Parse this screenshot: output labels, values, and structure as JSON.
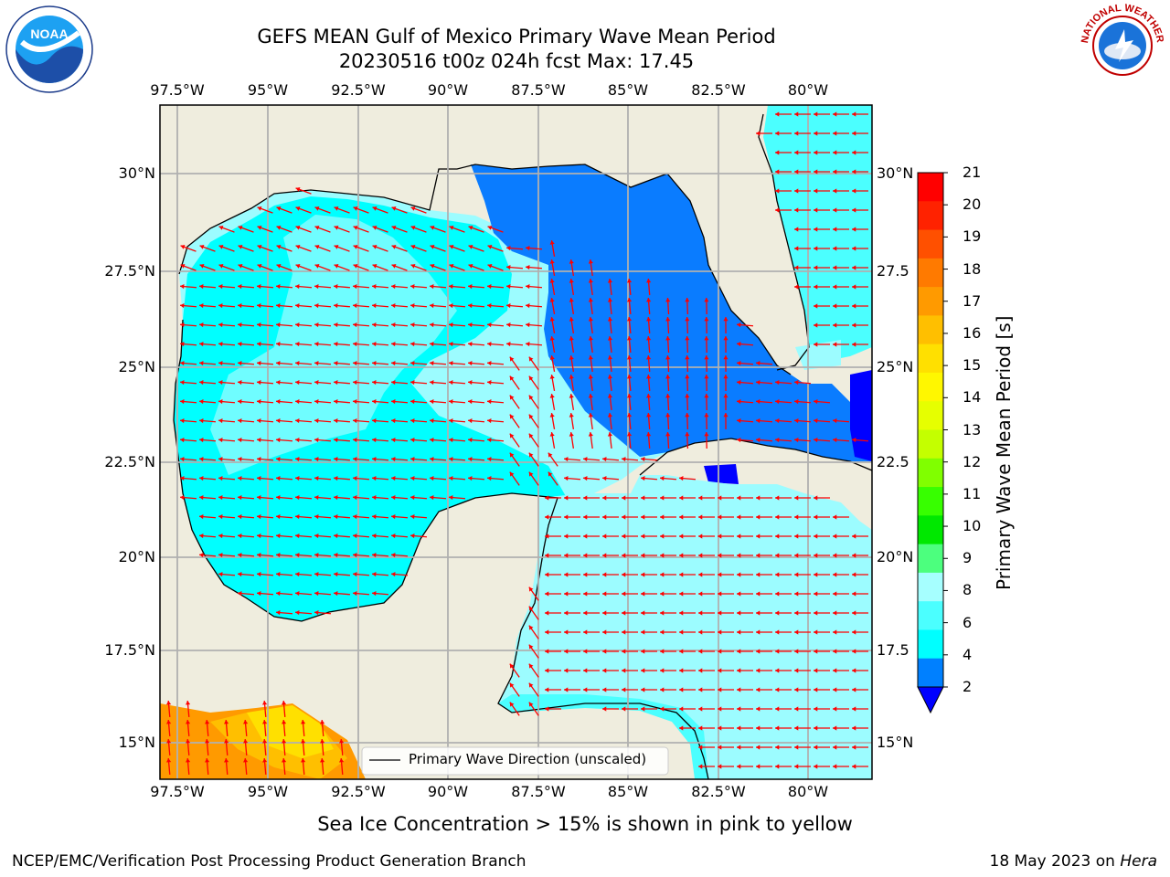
{
  "title_line1": "GEFS MEAN Gulf of Mexico Primary Wave Mean Period",
  "title_line2": "20230516 t00z 024h fcst   Max: 17.45",
  "lon_ticks_top": [
    "97.5°W",
    "95°W",
    "92.5°W",
    "90°W",
    "87.5°W",
    "85°W",
    "82.5°W",
    "80°W"
  ],
  "lon_ticks_bottom": [
    "97.5°W",
    "95°W",
    "92.5°W",
    "90°W",
    "87.5°W",
    "85°W",
    "82.5°W",
    "80°W"
  ],
  "lat_ticks_left": [
    "30°N",
    "27.5°N",
    "25°N",
    "22.5°N",
    "20°N",
    "17.5°N",
    "15°N"
  ],
  "lat_ticks_right": [
    "30°N",
    "27.5",
    "25°N",
    "22.5",
    "20°N",
    "17.5",
    "15°N"
  ],
  "colorbar": {
    "label": "Primary Wave Mean Period [s]",
    "ticks": [
      "21",
      "20",
      "19",
      "18",
      "17",
      "16",
      "15",
      "14",
      "13",
      "12",
      "11",
      "10",
      "9",
      "8",
      "6",
      "4",
      "2"
    ],
    "colors": [
      "#ff0000",
      "#ff2200",
      "#ff5000",
      "#ff7a00",
      "#ff9a00",
      "#ffbf00",
      "#ffe000",
      "#fff700",
      "#e6ff00",
      "#c4ff00",
      "#80ff00",
      "#37ff00",
      "#00e800",
      "#4cff7e",
      "#a6ffff",
      "#4bffff",
      "#00ffff",
      "#0080ff",
      "#0000ff"
    ]
  },
  "legend_label": "Primary Wave Direction (unscaled)",
  "note": "Sea Ice Concentration > 15% is shown in pink to yellow",
  "footer_left": "NCEP/EMC/Verification Post Processing Product Generation Branch",
  "footer_right_prefix": "18 May 2023 on ",
  "footer_right_host": "Hera",
  "logo_left_text": "NOAA",
  "logo_right_text": "NATIONAL WEATHER SERVICE",
  "colors": {
    "land": "#efedde",
    "grid": "#b0b0b0",
    "arrow": "#ff0000",
    "cyan": "#00ffff",
    "light_cyan": "#9cfcff",
    "mid_blue": "#0a7cff",
    "dark_blue": "#0000ff"
  }
}
